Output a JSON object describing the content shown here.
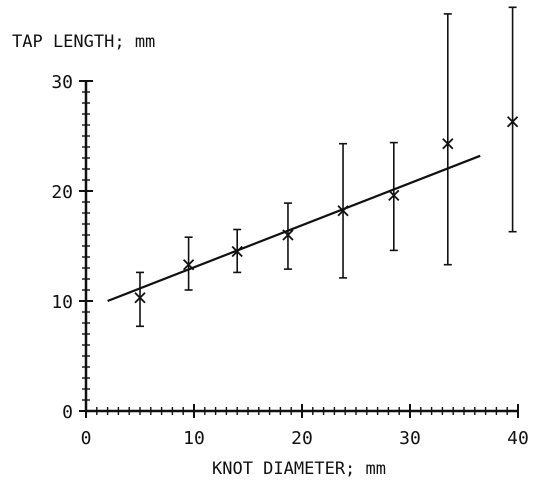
{
  "chart_data": {
    "type": "scatter",
    "title": "",
    "xlabel": "KNOT DIAMETER; mm",
    "ylabel": "TAP LENGTH; mm",
    "xlim": [
      0,
      40
    ],
    "ylim": [
      0,
      30
    ],
    "x_ticks": [
      "0",
      "10",
      "20",
      "30",
      "40"
    ],
    "y_ticks": [
      "0",
      "10",
      "20",
      "30"
    ],
    "grid": false,
    "legend": "none",
    "series": [
      {
        "marker": "x",
        "points": [
          {
            "x": 5.0,
            "y": 10.3,
            "low": 7.7,
            "high": 12.6
          },
          {
            "x": 9.5,
            "y": 13.3,
            "low": 11.0,
            "high": 15.8
          },
          {
            "x": 14.0,
            "y": 14.5,
            "low": 12.6,
            "high": 16.5
          },
          {
            "x": 18.7,
            "y": 16.0,
            "low": 12.9,
            "high": 18.9
          },
          {
            "x": 23.8,
            "y": 18.2,
            "low": 12.1,
            "high": 24.3
          },
          {
            "x": 28.5,
            "y": 19.6,
            "low": 14.6,
            "high": 24.4
          },
          {
            "x": 33.5,
            "y": 24.3,
            "low": 13.3,
            "high": 36.1
          },
          {
            "x": 39.5,
            "y": 26.3,
            "low": 16.3,
            "high": 36.7
          }
        ]
      }
    ],
    "fit_line": {
      "x1": 2.0,
      "y1": 10.0,
      "x2": 36.5,
      "y2": 23.2
    },
    "colors": {
      "ink": "#111111",
      "background": "#ffffff"
    }
  }
}
